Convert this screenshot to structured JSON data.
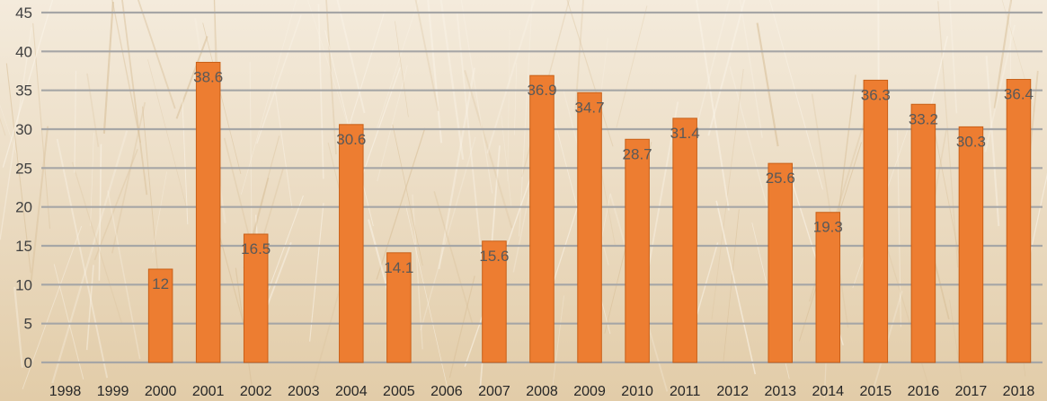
{
  "chart_data": {
    "type": "bar",
    "title": "",
    "xlabel": "",
    "ylabel": "",
    "ylim": [
      0,
      45
    ],
    "y_ticks": [
      "0",
      "5",
      "10",
      "15",
      "20",
      "25",
      "30",
      "35",
      "40",
      "45"
    ],
    "grid": true,
    "legend": "none",
    "background": "wheat-field photo",
    "categories": [
      "1998",
      "1999",
      "2000",
      "2001",
      "2002",
      "2003",
      "2004",
      "2005",
      "2006",
      "2007",
      "2008",
      "2009",
      "2010",
      "2011",
      "2012",
      "2013",
      "2014",
      "2015",
      "2016",
      "2017",
      "2018"
    ],
    "values": [
      null,
      null,
      12,
      38.6,
      16.5,
      null,
      30.6,
      14.1,
      null,
      15.6,
      36.9,
      34.7,
      28.7,
      31.4,
      null,
      25.6,
      19.3,
      36.3,
      33.2,
      30.3,
      36.4
    ],
    "value_labels": [
      "",
      "",
      "12",
      "38.6",
      "16.5",
      "",
      "30.6",
      "14.1",
      "",
      "15.6",
      "36.9",
      "34.7",
      "28.7",
      "31.4",
      "",
      "25.6",
      "19.3",
      "36.3",
      "33.2",
      "30.3",
      "36.4"
    ],
    "colors": {
      "bar": "#ED7D31",
      "bar_edge": "#C85F17",
      "label": "#595959",
      "grid": "#A6A6A6",
      "background": "#EFE3CF"
    }
  }
}
